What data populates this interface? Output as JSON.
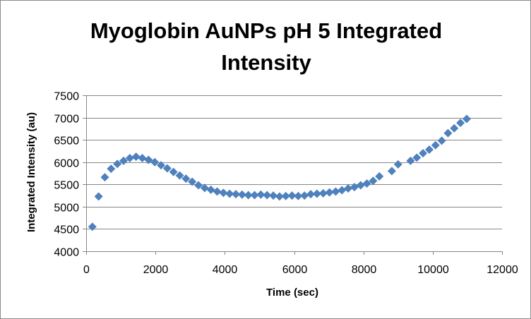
{
  "chart_data": {
    "type": "scatter",
    "title_lines": [
      "Myoglobin AuNPs pH 5 Integrated",
      "Intensity"
    ],
    "xlabel": "Time (sec)",
    "ylabel": "Integrated Intensity (au)",
    "xlim": [
      0,
      12000
    ],
    "ylim": [
      4000,
      7500
    ],
    "x_ticks": [
      0,
      2000,
      4000,
      6000,
      8000,
      10000,
      12000
    ],
    "y_ticks": [
      4000,
      4500,
      5000,
      5500,
      6000,
      6500,
      7000,
      7500
    ],
    "grid": "horizontal",
    "legend": "none",
    "marker": "diamond",
    "series": [
      {
        "name": "Integrated Intensity",
        "color": "#4f81bd",
        "points": [
          [
            180,
            4550
          ],
          [
            360,
            5230
          ],
          [
            540,
            5660
          ],
          [
            720,
            5850
          ],
          [
            900,
            5960
          ],
          [
            1080,
            6030
          ],
          [
            1260,
            6090
          ],
          [
            1440,
            6120
          ],
          [
            1620,
            6090
          ],
          [
            1800,
            6050
          ],
          [
            1980,
            6000
          ],
          [
            2160,
            5930
          ],
          [
            2340,
            5860
          ],
          [
            2520,
            5780
          ],
          [
            2700,
            5700
          ],
          [
            2880,
            5630
          ],
          [
            3060,
            5560
          ],
          [
            3240,
            5480
          ],
          [
            3420,
            5420
          ],
          [
            3600,
            5380
          ],
          [
            3780,
            5340
          ],
          [
            3960,
            5310
          ],
          [
            4140,
            5290
          ],
          [
            4320,
            5280
          ],
          [
            4500,
            5270
          ],
          [
            4680,
            5260
          ],
          [
            4860,
            5260
          ],
          [
            5040,
            5270
          ],
          [
            5220,
            5260
          ],
          [
            5400,
            5250
          ],
          [
            5580,
            5230
          ],
          [
            5760,
            5240
          ],
          [
            5940,
            5250
          ],
          [
            6120,
            5240
          ],
          [
            6300,
            5250
          ],
          [
            6480,
            5280
          ],
          [
            6660,
            5290
          ],
          [
            6840,
            5300
          ],
          [
            7020,
            5320
          ],
          [
            7200,
            5340
          ],
          [
            7380,
            5370
          ],
          [
            7560,
            5410
          ],
          [
            7740,
            5440
          ],
          [
            7920,
            5480
          ],
          [
            8100,
            5520
          ],
          [
            8280,
            5580
          ],
          [
            8460,
            5680
          ],
          [
            8820,
            5800
          ],
          [
            9000,
            5950
          ],
          [
            9360,
            6030
          ],
          [
            9540,
            6100
          ],
          [
            9720,
            6200
          ],
          [
            9900,
            6280
          ],
          [
            10080,
            6380
          ],
          [
            10260,
            6480
          ],
          [
            10440,
            6650
          ],
          [
            10620,
            6760
          ],
          [
            10800,
            6880
          ],
          [
            10980,
            6970
          ]
        ]
      }
    ]
  }
}
